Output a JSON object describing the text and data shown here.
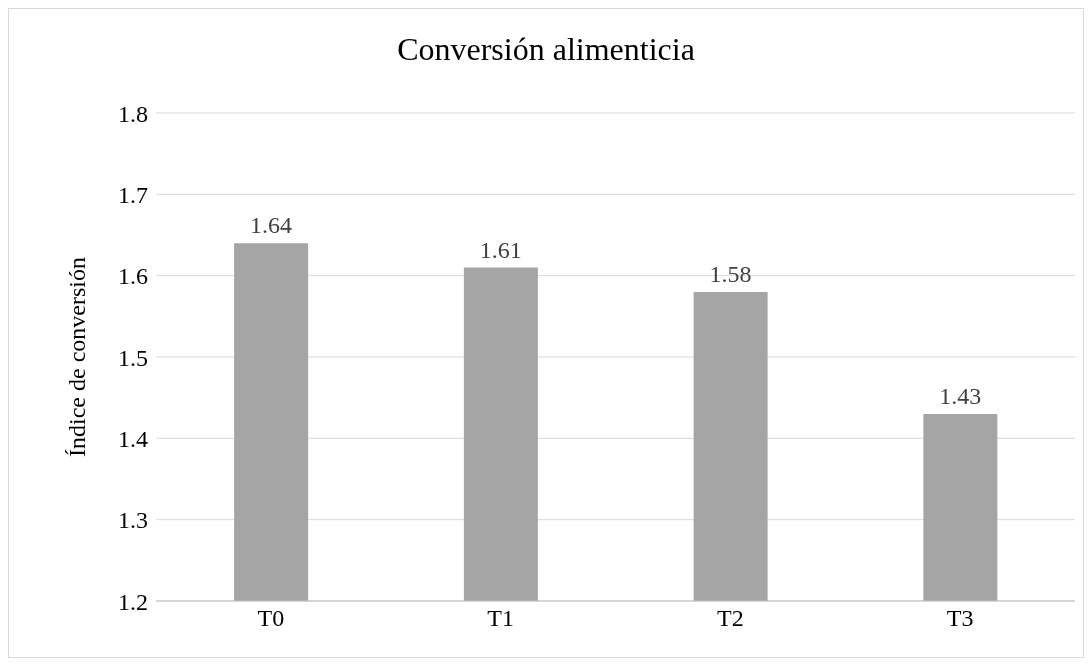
{
  "chart_data": {
    "type": "bar",
    "title": "Conversión alimenticia",
    "ylabel": "Índice de conversión",
    "categories": [
      "T0",
      "T1",
      "T2",
      "T3"
    ],
    "values": [
      1.64,
      1.61,
      1.58,
      1.43
    ],
    "color": "#a5a5a5",
    "ylim": [
      1.2,
      1.8
    ],
    "yticks": [
      1.2,
      1.3,
      1.4,
      1.5,
      1.6,
      1.7,
      1.8
    ],
    "grid": "y",
    "data_labels": true
  }
}
